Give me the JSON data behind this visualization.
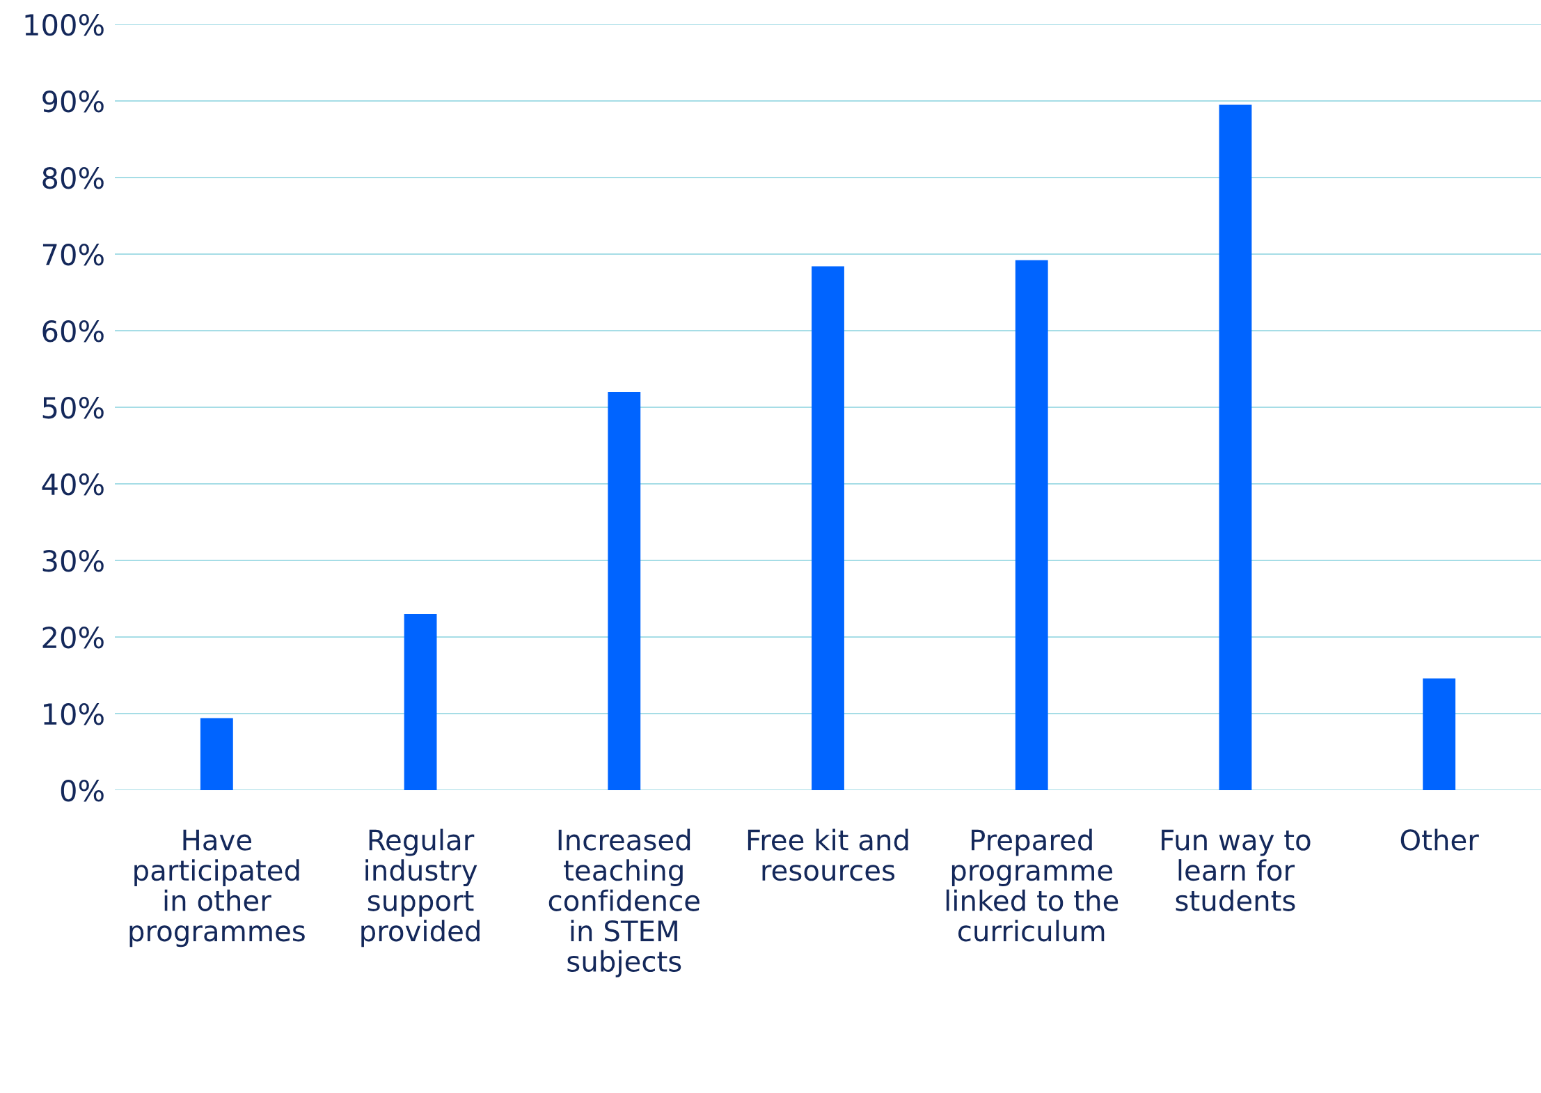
{
  "chart_data": {
    "type": "bar",
    "categories": [
      "Have\nparticipated\nin other\nprogrammes",
      "Regular\nindustry\nsupport\nprovided",
      "Increased\nteaching\nconfidence\nin STEM\nsubjects",
      "Free kit and\nresources",
      "Prepared\nprogramme\nlinked to the\ncurriculum",
      "Fun way to\nlearn for\nstudents",
      "Other"
    ],
    "values": [
      9.4,
      23.0,
      52.0,
      68.4,
      69.2,
      89.5,
      14.6
    ],
    "color": "#0064ff",
    "ylim": [
      0,
      100
    ],
    "yticks": [
      {
        "value": 0,
        "label": "0%"
      },
      {
        "value": 10,
        "label": "10%"
      },
      {
        "value": 20,
        "label": "20%"
      },
      {
        "value": 30,
        "label": "30%"
      },
      {
        "value": 40,
        "label": "40%"
      },
      {
        "value": 50,
        "label": "50%"
      },
      {
        "value": 60,
        "label": "60%"
      },
      {
        "value": 70,
        "label": "70%"
      },
      {
        "value": 80,
        "label": "80%"
      },
      {
        "value": 90,
        "label": "90%"
      },
      {
        "value": 100,
        "label": "100%"
      }
    ],
    "grid": "y"
  }
}
